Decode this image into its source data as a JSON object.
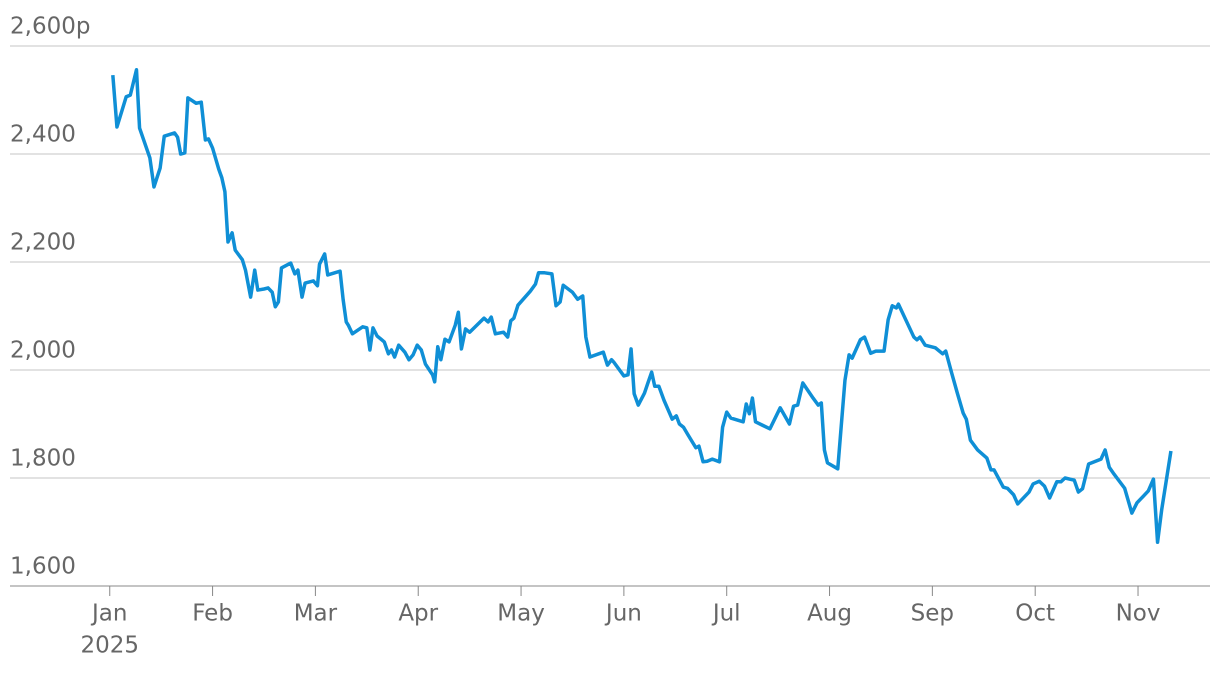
{
  "chart_data": {
    "type": "line",
    "color": "#0f8fd6",
    "grid": true,
    "xlim": [
      -0.97,
      10.7
    ],
    "ylim": [
      1600,
      2600
    ],
    "yticks": [
      {
        "value": 1600,
        "label": "1,600"
      },
      {
        "value": 1800,
        "label": "1,800"
      },
      {
        "value": 2000,
        "label": "2,000"
      },
      {
        "value": 2200,
        "label": "2,200"
      },
      {
        "value": 2400,
        "label": "2,400"
      },
      {
        "value": 2600,
        "label": "2,600p"
      }
    ],
    "xticks": [
      {
        "value": 0,
        "label": "Jan"
      },
      {
        "value": 1,
        "label": "Feb"
      },
      {
        "value": 2,
        "label": "Mar"
      },
      {
        "value": 3,
        "label": "Apr"
      },
      {
        "value": 4,
        "label": "May"
      },
      {
        "value": 5,
        "label": "Jun"
      },
      {
        "value": 6,
        "label": "Jul"
      },
      {
        "value": 7,
        "label": "Aug"
      },
      {
        "value": 8,
        "label": "Sep"
      },
      {
        "value": 9,
        "label": "Oct"
      },
      {
        "value": 10,
        "label": "Nov"
      }
    ],
    "year_label": "2025",
    "x": [
      0.03,
      0.07,
      0.12,
      0.16,
      0.2,
      0.26,
      0.29,
      0.39,
      0.43,
      0.49,
      0.53,
      0.63,
      0.66,
      0.69,
      0.73,
      0.76,
      0.84,
      0.89,
      0.93,
      0.96,
      1.0,
      1.06,
      1.09,
      1.12,
      1.15,
      1.19,
      1.22,
      1.29,
      1.32,
      1.37,
      1.41,
      1.44,
      1.5,
      1.54,
      1.58,
      1.61,
      1.64,
      1.67,
      1.76,
      1.8,
      1.83,
      1.87,
      1.9,
      1.98,
      2.02,
      2.04,
      2.09,
      2.12,
      2.24,
      2.27,
      2.3,
      2.32,
      2.36,
      2.46,
      2.5,
      2.53,
      2.56,
      2.6,
      2.67,
      2.71,
      2.74,
      2.77,
      2.81,
      2.87,
      2.91,
      2.95,
      2.99,
      3.03,
      3.07,
      3.14,
      3.16,
      3.19,
      3.22,
      3.26,
      3.3,
      3.36,
      3.39,
      3.42,
      3.46,
      3.5,
      3.64,
      3.68,
      3.71,
      3.75,
      3.83,
      3.87,
      3.9,
      3.93,
      3.97,
      4.09,
      4.14,
      4.17,
      4.23,
      4.3,
      4.34,
      4.38,
      4.41,
      4.5,
      4.55,
      4.6,
      4.63,
      4.67,
      4.8,
      4.84,
      4.88,
      4.9,
      5.0,
      5.04,
      5.07,
      5.1,
      5.14,
      5.2,
      5.23,
      5.27,
      5.3,
      5.34,
      5.39,
      5.47,
      5.51,
      5.54,
      5.58,
      5.62,
      5.7,
      5.73,
      5.77,
      5.81,
      5.86,
      5.93,
      5.96,
      6.0,
      6.04,
      6.16,
      6.19,
      6.22,
      6.25,
      6.28,
      6.42,
      6.52,
      6.61,
      6.65,
      6.69,
      6.74,
      6.84,
      6.89,
      6.92,
      6.95,
      6.98,
      7.08,
      7.15,
      7.19,
      7.22,
      7.3,
      7.34,
      7.4,
      7.45,
      7.53,
      7.57,
      7.61,
      7.65,
      7.67,
      7.82,
      7.85,
      7.88,
      7.93,
      8.03,
      8.1,
      8.13,
      8.19,
      8.24,
      8.3,
      8.33,
      8.37,
      8.44,
      8.53,
      8.57,
      8.6,
      8.69,
      8.73,
      8.79,
      8.83,
      8.94,
      8.98,
      9.04,
      9.09,
      9.14,
      9.21,
      9.25,
      9.29,
      9.38,
      9.42,
      9.46,
      9.52,
      9.64,
      9.68,
      9.72,
      9.76,
      9.87,
      9.94,
      9.99,
      10.1,
      10.15,
      10.19,
      10.23,
      10.32
    ],
    "values": [
      2546,
      2450,
      2481,
      2506,
      2509,
      2556,
      2448,
      2393,
      2339,
      2374,
      2433,
      2439,
      2431,
      2400,
      2402,
      2504,
      2494,
      2496,
      2426,
      2428,
      2411,
      2372,
      2356,
      2330,
      2237,
      2254,
      2222,
      2204,
      2185,
      2135,
      2185,
      2148,
      2150,
      2152,
      2144,
      2117,
      2126,
      2189,
      2198,
      2178,
      2185,
      2135,
      2161,
      2165,
      2156,
      2196,
      2215,
      2176,
      2183,
      2130,
      2089,
      2083,
      2067,
      2080,
      2078,
      2037,
      2078,
      2063,
      2052,
      2030,
      2037,
      2024,
      2046,
      2033,
      2019,
      2028,
      2046,
      2037,
      2011,
      1991,
      1978,
      2043,
      2019,
      2057,
      2052,
      2083,
      2107,
      2039,
      2076,
      2070,
      2096,
      2089,
      2098,
      2067,
      2070,
      2061,
      2091,
      2096,
      2120,
      2146,
      2159,
      2180,
      2180,
      2178,
      2119,
      2126,
      2157,
      2144,
      2131,
      2137,
      2061,
      2024,
      2033,
      2009,
      2019,
      2015,
      1989,
      1991,
      2039,
      1956,
      1935,
      1957,
      1974,
      1996,
      1970,
      1970,
      1944,
      1909,
      1915,
      1900,
      1894,
      1881,
      1856,
      1859,
      1830,
      1831,
      1835,
      1830,
      1894,
      1922,
      1911,
      1904,
      1937,
      1919,
      1948,
      1904,
      1891,
      1930,
      1900,
      1933,
      1935,
      1976,
      1948,
      1935,
      1939,
      1852,
      1828,
      1817,
      1981,
      2028,
      2022,
      2056,
      2061,
      2031,
      2035,
      2035,
      2093,
      2119,
      2115,
      2122,
      2061,
      2056,
      2061,
      2046,
      2041,
      2030,
      2035,
      1993,
      1959,
      1920,
      1909,
      1870,
      1852,
      1837,
      1815,
      1815,
      1783,
      1781,
      1769,
      1752,
      1774,
      1789,
      1794,
      1785,
      1763,
      1793,
      1793,
      1800,
      1796,
      1774,
      1780,
      1826,
      1835,
      1852,
      1820,
      1809,
      1781,
      1735,
      1754,
      1776,
      1798,
      1681,
      1741,
      1850
    ]
  }
}
